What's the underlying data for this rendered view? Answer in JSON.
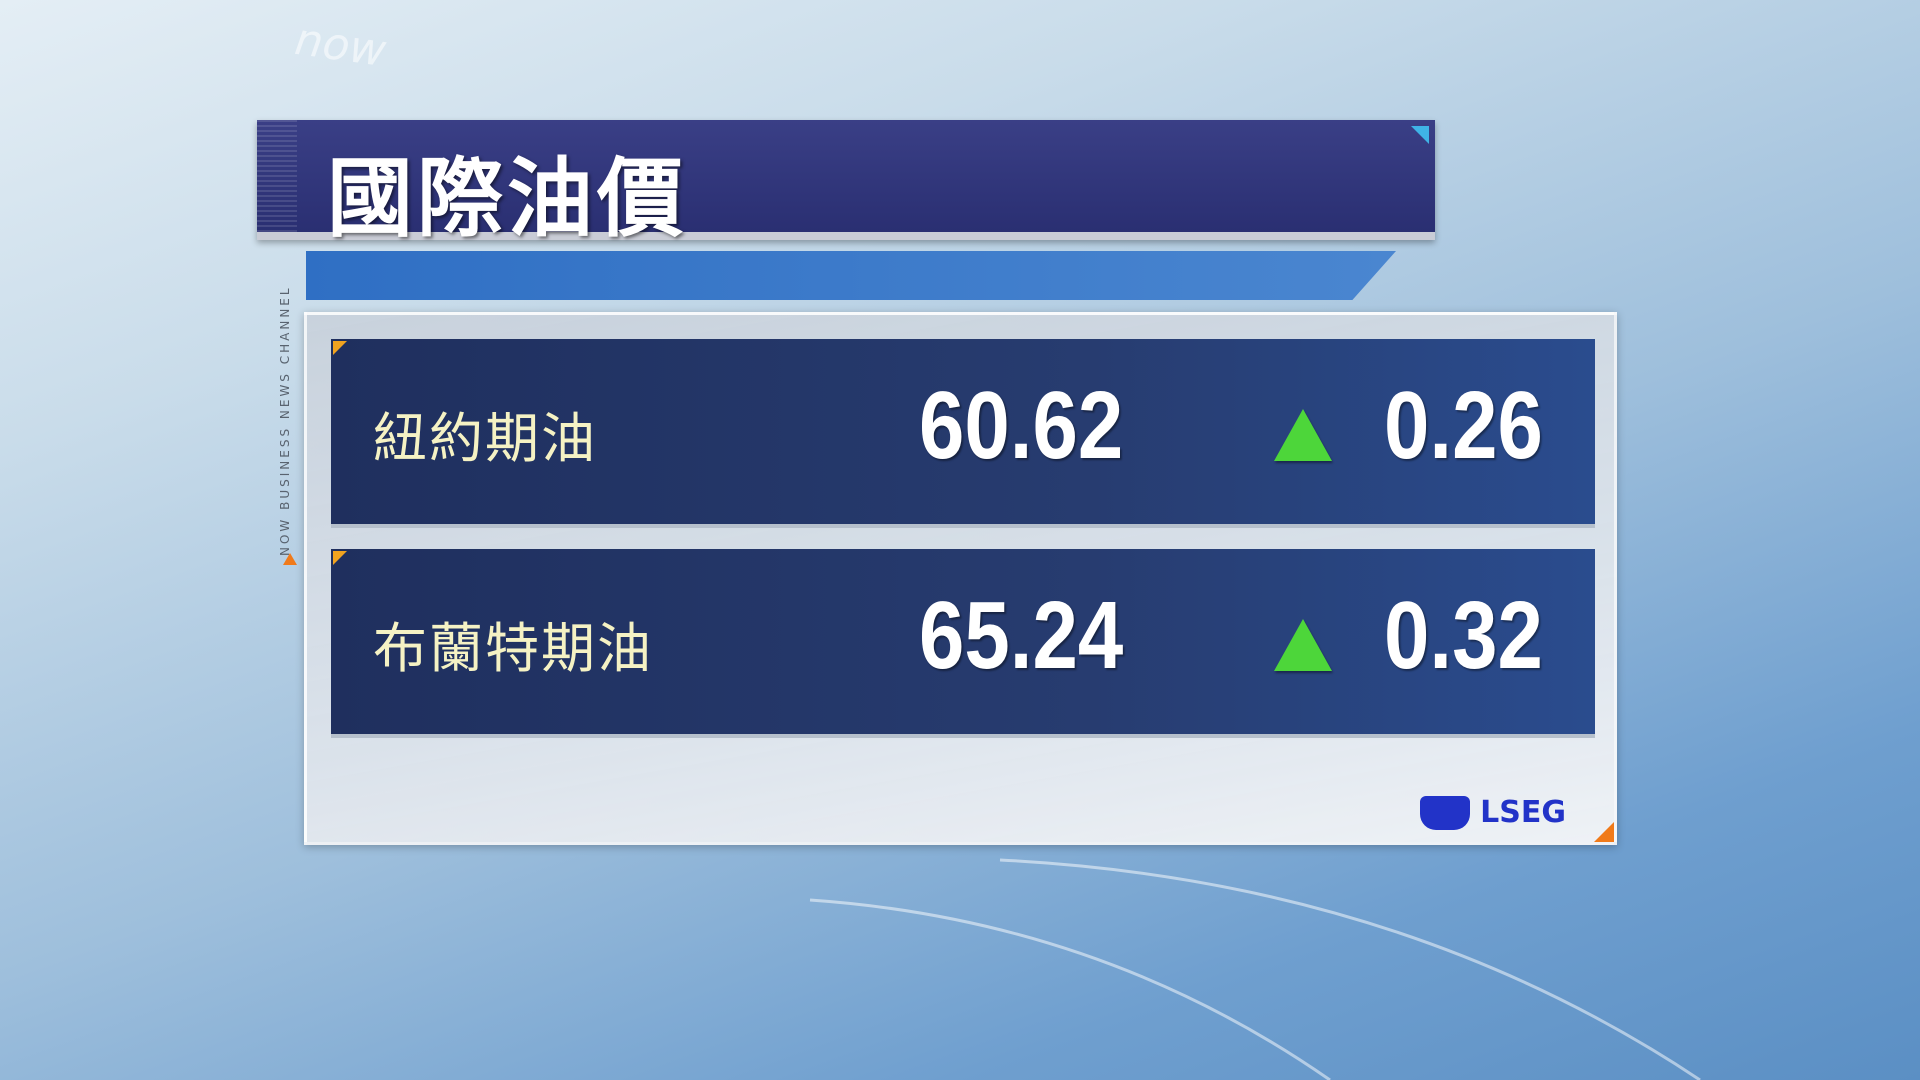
{
  "background": {
    "brand_watermark": "now"
  },
  "header": {
    "title": "國際油價"
  },
  "channel_strip": {
    "text": "NOW BUSINESS NEWS CHANNEL"
  },
  "quotes": [
    {
      "name": "紐約期油",
      "price": "60.62",
      "direction": "up",
      "change": "0.26"
    },
    {
      "name": "布蘭特期油",
      "price": "65.24",
      "direction": "up",
      "change": "0.32"
    }
  ],
  "source": {
    "logo_text": "LSEG"
  },
  "colors": {
    "title_bg": "#2a2f72",
    "row_bg": "#1f2f5e",
    "label": "#f5f2c4",
    "up_arrow": "#4dd63a",
    "accent": "#f07a1a",
    "source_logo": "#2233c8"
  }
}
